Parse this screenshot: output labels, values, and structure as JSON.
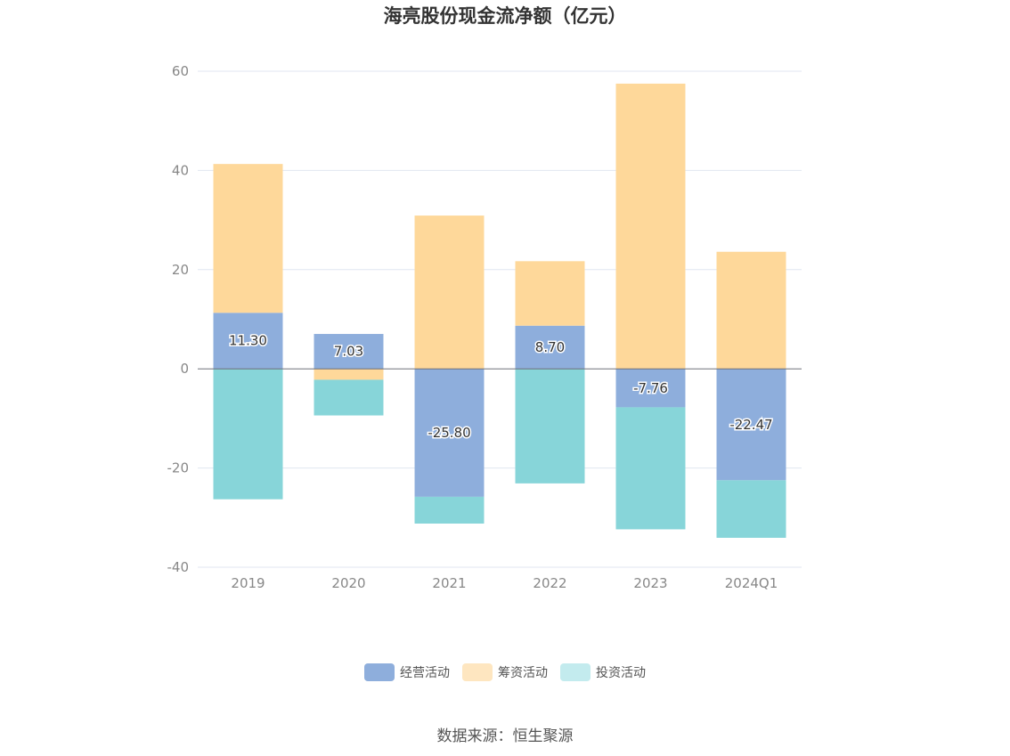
{
  "chart_data": {
    "type": "bar",
    "stacked": true,
    "title": "海亮股份现金流净额（亿元）",
    "categories": [
      "2019",
      "2020",
      "2021",
      "2022",
      "2023",
      "2024Q1"
    ],
    "series": [
      {
        "name": "经营活动",
        "color": "#8eaedc",
        "values": [
          11.3,
          7.03,
          -25.8,
          8.7,
          -7.76,
          -22.47
        ],
        "labels": [
          "11.30",
          "7.03",
          "-25.80",
          "8.70",
          "-7.76",
          "-22.47"
        ]
      },
      {
        "name": "筹资活动",
        "color": "#fed89a",
        "legend_color": "#fee6c0",
        "values": [
          30.0,
          -2.2,
          30.9,
          13.0,
          57.5,
          23.6
        ]
      },
      {
        "name": "投资活动",
        "color": "#87d5d9",
        "legend_color": "#c3ebee",
        "values": [
          -26.3,
          -7.2,
          -5.4,
          -23.1,
          -24.6,
          -11.6
        ]
      }
    ],
    "ylim": [
      -40,
      60
    ],
    "yticks": [
      -40,
      -20,
      0,
      20,
      40,
      60
    ],
    "grid": true,
    "legend_position": "bottom"
  },
  "source_text": "数据来源：恒生聚源"
}
